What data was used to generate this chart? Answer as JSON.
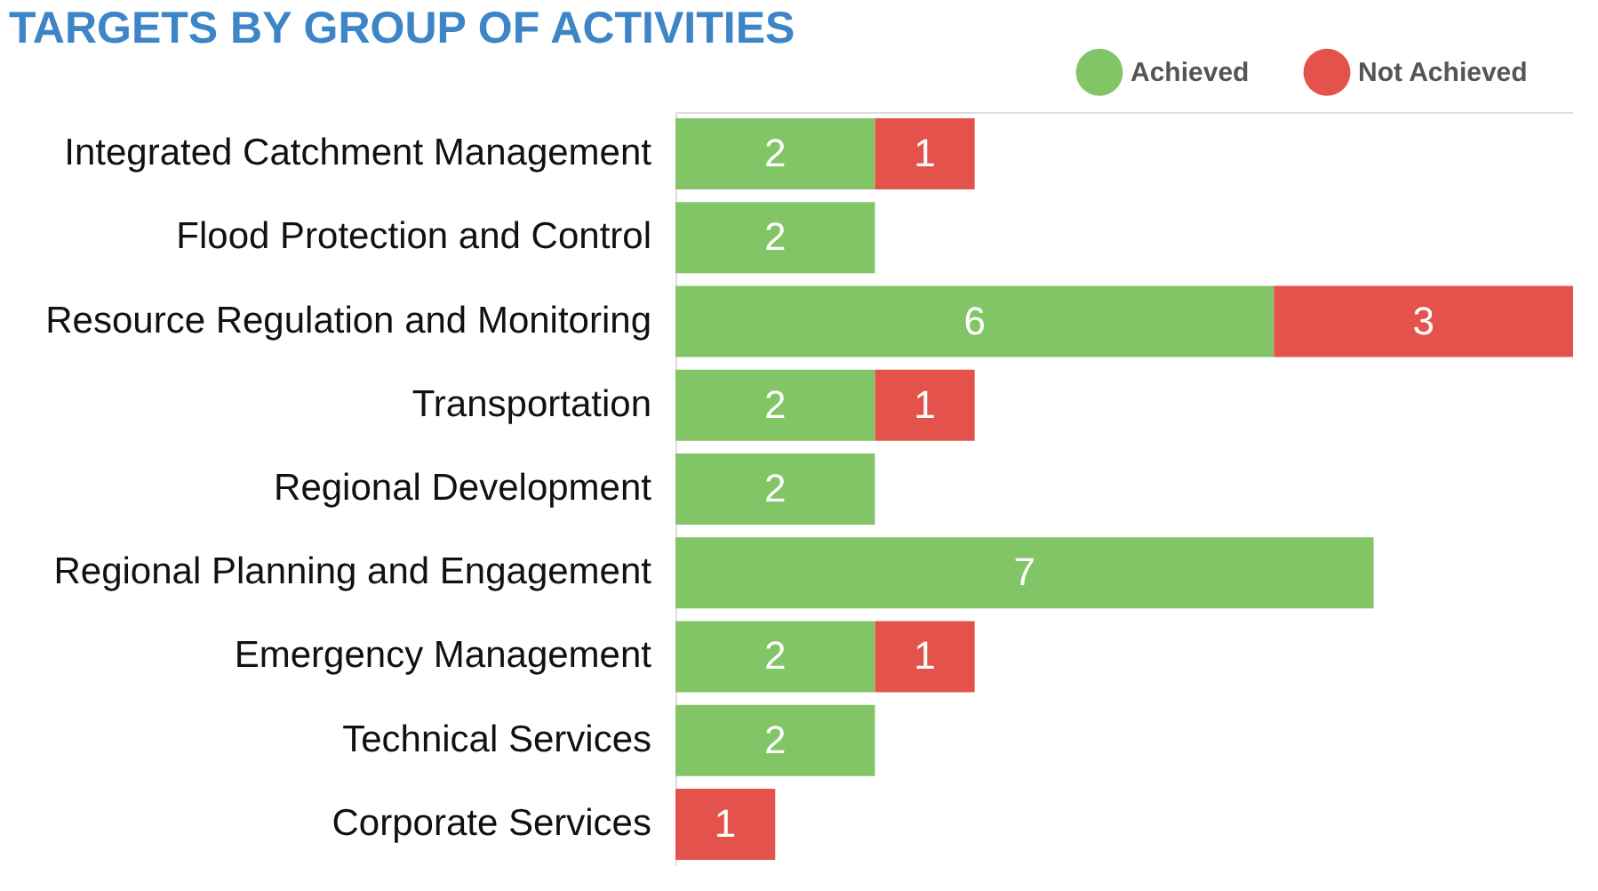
{
  "chart_data": {
    "type": "bar",
    "orientation": "horizontal",
    "stacked": true,
    "data_labels": true,
    "legend": "top right",
    "grid": false,
    "tick_labels": "y",
    "title": "TARGETS BY GROUP OF ACTIVITIES",
    "categories": [
      "Integrated Catchment Management",
      "Flood Protection and Control",
      "Resource Regulation and Monitoring",
      "Transportation",
      "Regional Development",
      "Regional Planning and Engagement",
      "Emergency Management",
      "Technical Services",
      "Corporate Services"
    ],
    "series": [
      {
        "name": "Achieved",
        "color": "#82c566",
        "values": [
          2,
          2,
          6,
          2,
          2,
          7,
          2,
          2,
          null
        ]
      },
      {
        "name": "Not Achieved",
        "color": "#e4534b",
        "values": [
          1,
          null,
          3,
          1,
          null,
          null,
          1,
          null,
          1
        ]
      }
    ]
  }
}
